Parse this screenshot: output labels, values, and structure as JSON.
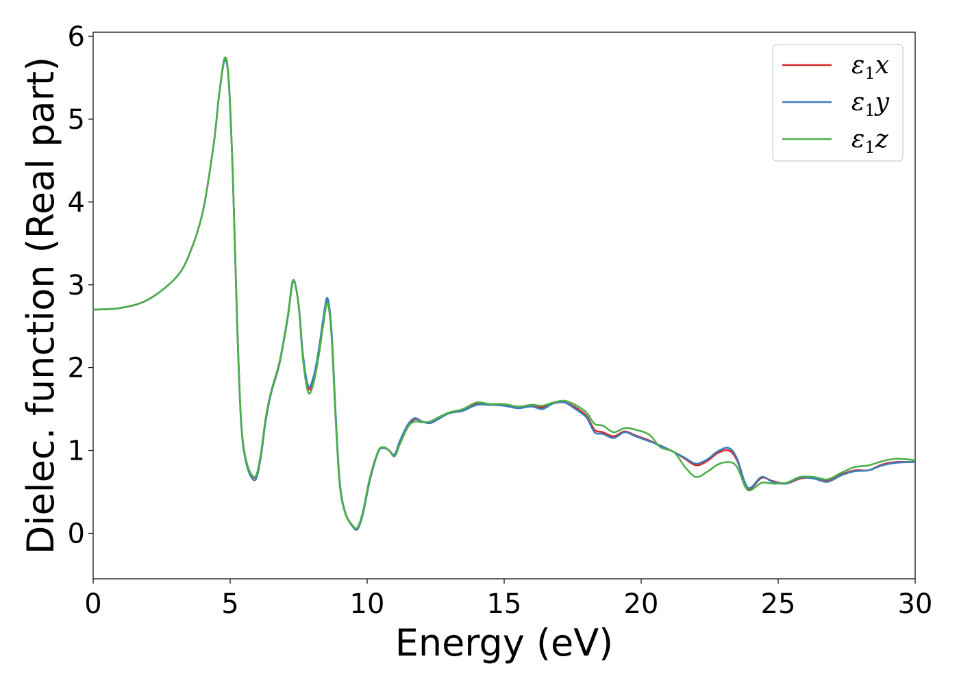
{
  "chart_data": {
    "type": "line",
    "title": "",
    "xlabel": "Energy (eV)",
    "ylabel": "Dielec. function (Real part)",
    "xlim": [
      0,
      30
    ],
    "ylim": [
      -0.55,
      6.05
    ],
    "xticks": [
      0,
      5,
      10,
      15,
      20,
      25,
      30
    ],
    "yticks": [
      0,
      1,
      2,
      3,
      4,
      5,
      6
    ],
    "grid": false,
    "legend_position": "top-right",
    "series": [
      {
        "name": "ε1x",
        "name_base": "ε",
        "name_sub": "1",
        "name_var": "x",
        "color": "#d62728",
        "points": [
          [
            0,
            2.7
          ],
          [
            1,
            2.72
          ],
          [
            2,
            2.82
          ],
          [
            3,
            3.08
          ],
          [
            3.5,
            3.36
          ],
          [
            4,
            3.88
          ],
          [
            4.4,
            4.7
          ],
          [
            4.6,
            5.3
          ],
          [
            4.8,
            5.72
          ],
          [
            4.95,
            5.45
          ],
          [
            5.1,
            4.3
          ],
          [
            5.25,
            2.6
          ],
          [
            5.4,
            1.35
          ],
          [
            5.6,
            0.85
          ],
          [
            5.9,
            0.67
          ],
          [
            6.1,
            0.9
          ],
          [
            6.3,
            1.38
          ],
          [
            6.5,
            1.7
          ],
          [
            6.8,
            2.05
          ],
          [
            7.1,
            2.6
          ],
          [
            7.3,
            3.05
          ],
          [
            7.5,
            2.75
          ],
          [
            7.65,
            2.15
          ],
          [
            7.85,
            1.75
          ],
          [
            8.05,
            1.85
          ],
          [
            8.25,
            2.2
          ],
          [
            8.4,
            2.55
          ],
          [
            8.55,
            2.8
          ],
          [
            8.7,
            2.4
          ],
          [
            8.85,
            1.4
          ],
          [
            9.0,
            0.6
          ],
          [
            9.2,
            0.25
          ],
          [
            9.45,
            0.1
          ],
          [
            9.65,
            0.06
          ],
          [
            9.85,
            0.25
          ],
          [
            10.1,
            0.65
          ],
          [
            10.4,
            0.98
          ],
          [
            10.6,
            1.03
          ],
          [
            10.8,
            1.0
          ],
          [
            11.0,
            0.95
          ],
          [
            11.2,
            1.1
          ],
          [
            11.5,
            1.3
          ],
          [
            11.75,
            1.38
          ],
          [
            12.0,
            1.35
          ],
          [
            12.3,
            1.33
          ],
          [
            12.6,
            1.38
          ],
          [
            13.0,
            1.45
          ],
          [
            13.5,
            1.48
          ],
          [
            14.0,
            1.56
          ],
          [
            14.5,
            1.55
          ],
          [
            15.0,
            1.55
          ],
          [
            15.5,
            1.52
          ],
          [
            16.0,
            1.54
          ],
          [
            16.4,
            1.52
          ],
          [
            16.8,
            1.57
          ],
          [
            17.2,
            1.58
          ],
          [
            17.6,
            1.52
          ],
          [
            18.0,
            1.42
          ],
          [
            18.3,
            1.25
          ],
          [
            18.6,
            1.22
          ],
          [
            19.0,
            1.17
          ],
          [
            19.4,
            1.23
          ],
          [
            19.8,
            1.18
          ],
          [
            20.3,
            1.12
          ],
          [
            20.7,
            1.05
          ],
          [
            21.2,
            0.98
          ],
          [
            21.6,
            0.9
          ],
          [
            22.0,
            0.82
          ],
          [
            22.4,
            0.87
          ],
          [
            22.8,
            0.97
          ],
          [
            23.2,
            1.0
          ],
          [
            23.5,
            0.88
          ],
          [
            23.8,
            0.6
          ],
          [
            24.0,
            0.54
          ],
          [
            24.4,
            0.67
          ],
          [
            24.8,
            0.63
          ],
          [
            25.3,
            0.6
          ],
          [
            25.8,
            0.66
          ],
          [
            26.3,
            0.67
          ],
          [
            26.8,
            0.64
          ],
          [
            27.3,
            0.71
          ],
          [
            27.8,
            0.76
          ],
          [
            28.3,
            0.76
          ],
          [
            28.8,
            0.83
          ],
          [
            29.3,
            0.86
          ],
          [
            29.8,
            0.86
          ],
          [
            30,
            0.86
          ]
        ]
      },
      {
        "name": "ε1y",
        "name_base": "ε",
        "name_sub": "1",
        "name_var": "y",
        "color": "#3a7ebf",
        "points": [
          [
            0,
            2.7
          ],
          [
            1,
            2.72
          ],
          [
            2,
            2.82
          ],
          [
            3,
            3.08
          ],
          [
            3.5,
            3.36
          ],
          [
            4,
            3.88
          ],
          [
            4.4,
            4.7
          ],
          [
            4.6,
            5.3
          ],
          [
            4.8,
            5.71
          ],
          [
            4.95,
            5.44
          ],
          [
            5.1,
            4.28
          ],
          [
            5.25,
            2.58
          ],
          [
            5.4,
            1.33
          ],
          [
            5.6,
            0.83
          ],
          [
            5.9,
            0.64
          ],
          [
            6.1,
            0.88
          ],
          [
            6.3,
            1.36
          ],
          [
            6.5,
            1.7
          ],
          [
            6.8,
            2.05
          ],
          [
            7.1,
            2.6
          ],
          [
            7.3,
            3.04
          ],
          [
            7.5,
            2.76
          ],
          [
            7.65,
            2.18
          ],
          [
            7.85,
            1.78
          ],
          [
            8.05,
            1.9
          ],
          [
            8.25,
            2.25
          ],
          [
            8.4,
            2.6
          ],
          [
            8.55,
            2.84
          ],
          [
            8.7,
            2.45
          ],
          [
            8.85,
            1.45
          ],
          [
            9.0,
            0.62
          ],
          [
            9.2,
            0.25
          ],
          [
            9.45,
            0.09
          ],
          [
            9.65,
            0.05
          ],
          [
            9.85,
            0.24
          ],
          [
            10.1,
            0.64
          ],
          [
            10.4,
            0.98
          ],
          [
            10.6,
            1.03
          ],
          [
            10.8,
            1.0
          ],
          [
            11.0,
            0.95
          ],
          [
            11.2,
            1.12
          ],
          [
            11.5,
            1.32
          ],
          [
            11.75,
            1.39
          ],
          [
            12.0,
            1.35
          ],
          [
            12.3,
            1.33
          ],
          [
            12.6,
            1.38
          ],
          [
            13.0,
            1.45
          ],
          [
            13.5,
            1.48
          ],
          [
            14.0,
            1.55
          ],
          [
            14.5,
            1.55
          ],
          [
            15.0,
            1.54
          ],
          [
            15.5,
            1.51
          ],
          [
            16.0,
            1.53
          ],
          [
            16.4,
            1.5
          ],
          [
            16.8,
            1.57
          ],
          [
            17.2,
            1.58
          ],
          [
            17.6,
            1.5
          ],
          [
            18.0,
            1.4
          ],
          [
            18.3,
            1.22
          ],
          [
            18.6,
            1.2
          ],
          [
            19.0,
            1.15
          ],
          [
            19.4,
            1.22
          ],
          [
            19.8,
            1.17
          ],
          [
            20.3,
            1.11
          ],
          [
            20.7,
            1.06
          ],
          [
            21.2,
            0.98
          ],
          [
            21.6,
            0.91
          ],
          [
            22.0,
            0.84
          ],
          [
            22.4,
            0.89
          ],
          [
            22.8,
            0.99
          ],
          [
            23.2,
            1.03
          ],
          [
            23.5,
            0.9
          ],
          [
            23.8,
            0.6
          ],
          [
            24.0,
            0.55
          ],
          [
            24.4,
            0.68
          ],
          [
            24.8,
            0.62
          ],
          [
            25.3,
            0.6
          ],
          [
            25.8,
            0.67
          ],
          [
            26.3,
            0.66
          ],
          [
            26.8,
            0.62
          ],
          [
            27.3,
            0.7
          ],
          [
            27.8,
            0.75
          ],
          [
            28.3,
            0.76
          ],
          [
            28.8,
            0.82
          ],
          [
            29.3,
            0.85
          ],
          [
            29.8,
            0.86
          ],
          [
            30,
            0.86
          ]
        ]
      },
      {
        "name": "ε1z",
        "name_base": "ε",
        "name_sub": "1",
        "name_var": "z",
        "color": "#4daf4a",
        "points": [
          [
            0,
            2.7
          ],
          [
            1,
            2.72
          ],
          [
            2,
            2.82
          ],
          [
            3,
            3.08
          ],
          [
            3.5,
            3.36
          ],
          [
            4,
            3.88
          ],
          [
            4.4,
            4.7
          ],
          [
            4.6,
            5.3
          ],
          [
            4.8,
            5.74
          ],
          [
            4.95,
            5.47
          ],
          [
            5.1,
            4.3
          ],
          [
            5.25,
            2.62
          ],
          [
            5.4,
            1.36
          ],
          [
            5.6,
            0.86
          ],
          [
            5.9,
            0.68
          ],
          [
            6.1,
            0.92
          ],
          [
            6.3,
            1.4
          ],
          [
            6.5,
            1.72
          ],
          [
            6.8,
            2.07
          ],
          [
            7.1,
            2.62
          ],
          [
            7.3,
            3.06
          ],
          [
            7.5,
            2.74
          ],
          [
            7.65,
            2.12
          ],
          [
            7.85,
            1.7
          ],
          [
            8.05,
            1.82
          ],
          [
            8.25,
            2.18
          ],
          [
            8.4,
            2.52
          ],
          [
            8.55,
            2.78
          ],
          [
            8.7,
            2.38
          ],
          [
            8.85,
            1.38
          ],
          [
            9.0,
            0.58
          ],
          [
            9.2,
            0.24
          ],
          [
            9.45,
            0.1
          ],
          [
            9.65,
            0.07
          ],
          [
            9.85,
            0.27
          ],
          [
            10.1,
            0.67
          ],
          [
            10.4,
            0.99
          ],
          [
            10.6,
            1.04
          ],
          [
            10.8,
            1.0
          ],
          [
            11.0,
            0.93
          ],
          [
            11.2,
            1.08
          ],
          [
            11.5,
            1.29
          ],
          [
            11.75,
            1.35
          ],
          [
            12.0,
            1.34
          ],
          [
            12.3,
            1.35
          ],
          [
            12.6,
            1.4
          ],
          [
            13.0,
            1.46
          ],
          [
            13.5,
            1.5
          ],
          [
            14.0,
            1.58
          ],
          [
            14.5,
            1.56
          ],
          [
            15.0,
            1.56
          ],
          [
            15.5,
            1.53
          ],
          [
            16.0,
            1.55
          ],
          [
            16.4,
            1.54
          ],
          [
            16.8,
            1.58
          ],
          [
            17.2,
            1.6
          ],
          [
            17.6,
            1.55
          ],
          [
            18.0,
            1.46
          ],
          [
            18.3,
            1.32
          ],
          [
            18.6,
            1.3
          ],
          [
            19.0,
            1.22
          ],
          [
            19.4,
            1.27
          ],
          [
            19.8,
            1.25
          ],
          [
            20.3,
            1.19
          ],
          [
            20.7,
            1.04
          ],
          [
            21.2,
            0.98
          ],
          [
            21.6,
            0.8
          ],
          [
            22.0,
            0.68
          ],
          [
            22.4,
            0.74
          ],
          [
            22.8,
            0.83
          ],
          [
            23.2,
            0.86
          ],
          [
            23.5,
            0.8
          ],
          [
            23.8,
            0.56
          ],
          [
            24.0,
            0.52
          ],
          [
            24.4,
            0.61
          ],
          [
            24.8,
            0.6
          ],
          [
            25.3,
            0.61
          ],
          [
            25.8,
            0.68
          ],
          [
            26.3,
            0.68
          ],
          [
            26.8,
            0.65
          ],
          [
            27.3,
            0.73
          ],
          [
            27.8,
            0.8
          ],
          [
            28.3,
            0.82
          ],
          [
            28.8,
            0.87
          ],
          [
            29.3,
            0.9
          ],
          [
            29.8,
            0.89
          ],
          [
            30,
            0.88
          ]
        ]
      }
    ]
  }
}
